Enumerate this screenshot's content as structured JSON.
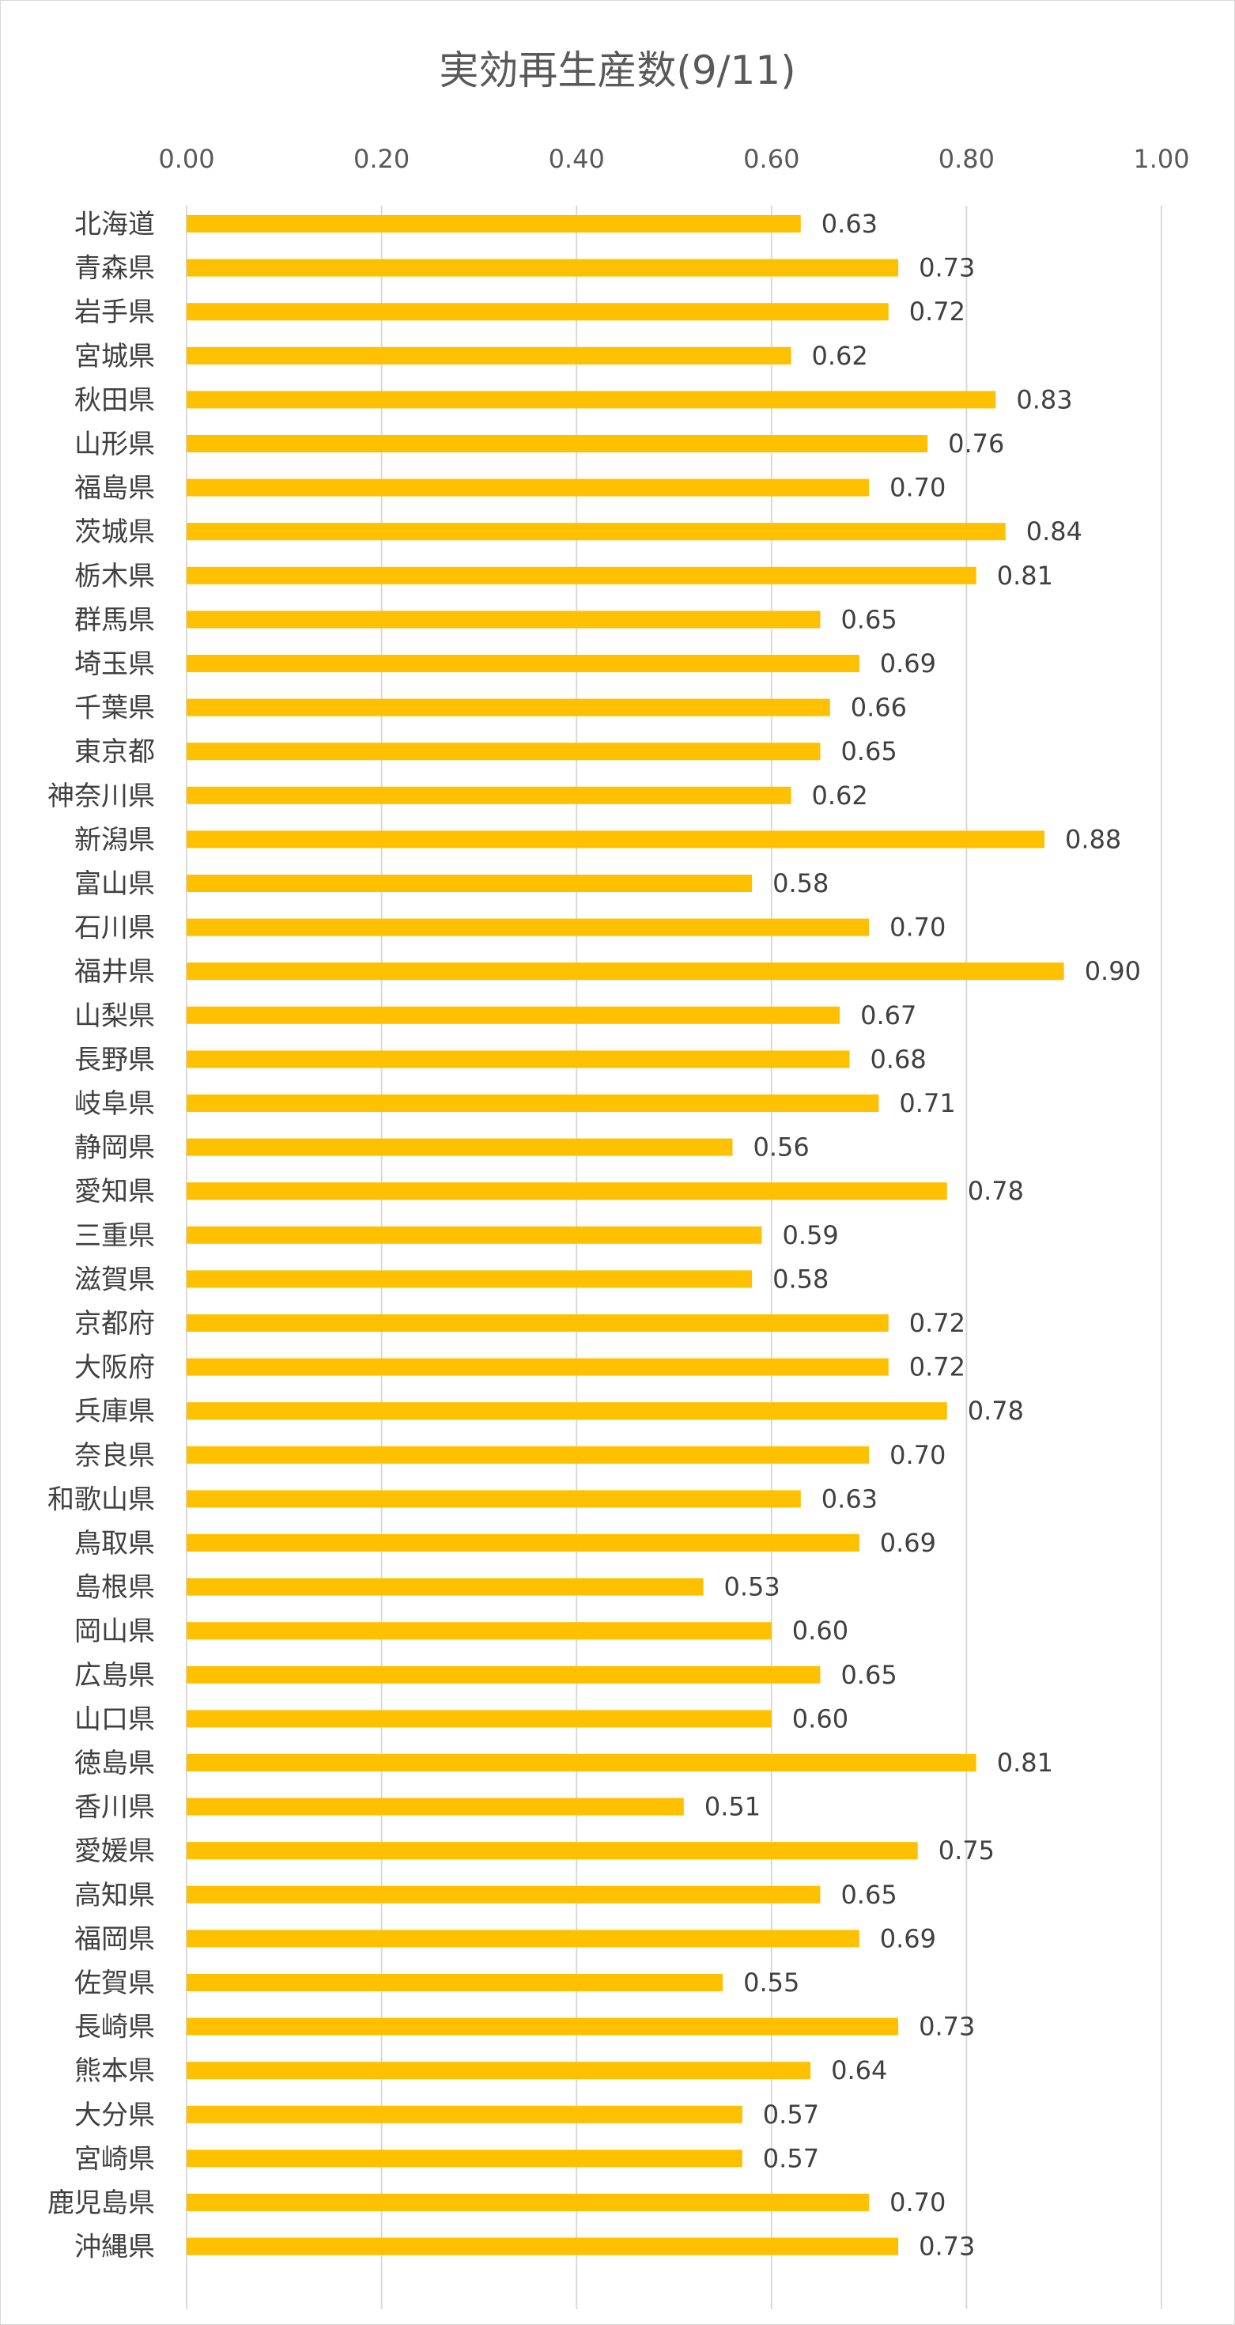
{
  "chart_data": {
    "type": "bar",
    "orientation": "horizontal",
    "title": "実効再生産数(9/11)",
    "xlim": [
      0,
      1
    ],
    "x_ticks": [
      "0.00",
      "0.20",
      "0.40",
      "0.60",
      "0.80",
      "1.00"
    ],
    "x_axis_position": "top",
    "grid": true,
    "legend": "none",
    "bar_color": "#FFC000",
    "categories": [
      "北海道",
      "青森県",
      "岩手県",
      "宮城県",
      "秋田県",
      "山形県",
      "福島県",
      "茨城県",
      "栃木県",
      "群馬県",
      "埼玉県",
      "千葉県",
      "東京都",
      "神奈川県",
      "新潟県",
      "富山県",
      "石川県",
      "福井県",
      "山梨県",
      "長野県",
      "岐阜県",
      "静岡県",
      "愛知県",
      "三重県",
      "滋賀県",
      "京都府",
      "大阪府",
      "兵庫県",
      "奈良県",
      "和歌山県",
      "鳥取県",
      "島根県",
      "岡山県",
      "広島県",
      "山口県",
      "徳島県",
      "香川県",
      "愛媛県",
      "高知県",
      "福岡県",
      "佐賀県",
      "長崎県",
      "熊本県",
      "大分県",
      "宮崎県",
      "鹿児島県",
      "沖縄県"
    ],
    "values": [
      0.63,
      0.73,
      0.72,
      0.62,
      0.83,
      0.76,
      0.7,
      0.84,
      0.81,
      0.65,
      0.69,
      0.66,
      0.65,
      0.62,
      0.88,
      0.58,
      0.7,
      0.9,
      0.67,
      0.68,
      0.71,
      0.56,
      0.78,
      0.59,
      0.58,
      0.72,
      0.72,
      0.78,
      0.7,
      0.63,
      0.69,
      0.53,
      0.6,
      0.65,
      0.6,
      0.81,
      0.51,
      0.75,
      0.65,
      0.69,
      0.55,
      0.73,
      0.64,
      0.57,
      0.57,
      0.7,
      0.73
    ],
    "value_labels": [
      "0.63",
      "0.73",
      "0.72",
      "0.62",
      "0.83",
      "0.76",
      "0.70",
      "0.84",
      "0.81",
      "0.65",
      "0.69",
      "0.66",
      "0.65",
      "0.62",
      "0.88",
      "0.58",
      "0.70",
      "0.90",
      "0.67",
      "0.68",
      "0.71",
      "0.56",
      "0.78",
      "0.59",
      "0.58",
      "0.72",
      "0.72",
      "0.78",
      "0.70",
      "0.63",
      "0.69",
      "0.53",
      "0.60",
      "0.65",
      "0.60",
      "0.81",
      "0.51",
      "0.75",
      "0.65",
      "0.69",
      "0.55",
      "0.73",
      "0.64",
      "0.57",
      "0.57",
      "0.70",
      "0.73"
    ]
  }
}
